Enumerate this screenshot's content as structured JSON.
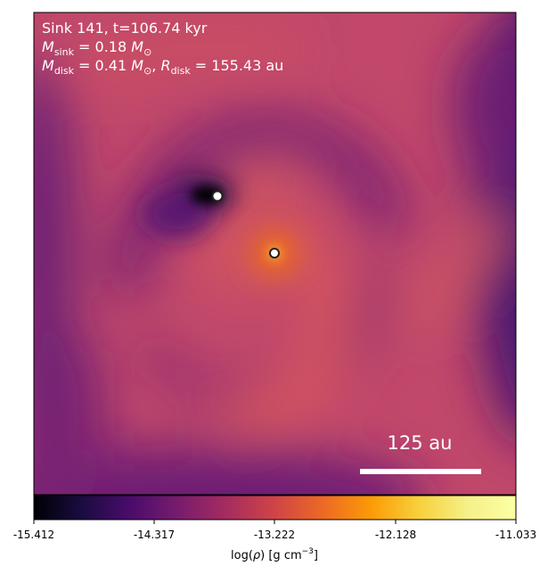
{
  "annotation": {
    "line1": "Sink 141, t=106.74 kyr",
    "line2_symbol": "M",
    "line2_sub": "sink",
    "line2_value": " = 0.18 ",
    "line2_unit": "M",
    "line2_unit_sub": "⊙",
    "line3_symbol": "M",
    "line3_sub": "disk",
    "line3_value": " = 0.41 ",
    "line3_unit": "M",
    "line3_unit_sub": "⊙",
    "line3_sep": ", ",
    "line3_r_symbol": "R",
    "line3_r_sub": "disk",
    "line3_r_value": " = 155.43 au"
  },
  "scale_bar": {
    "label": "125 au",
    "length_au": 125
  },
  "colorbar": {
    "colormap": "inferno",
    "min": -15.412,
    "max": -11.033,
    "tick_labels": [
      "-15.412",
      "-14.317",
      "-13.222",
      "-12.128",
      "-11.033"
    ],
    "label_prefix": "log(",
    "label_symbol": "ρ",
    "label_suffix": ") [g cm",
    "label_exp": "−3",
    "label_close": "]"
  },
  "sinks": [
    {
      "id": "sink-secondary"
    },
    {
      "id": "sink-primary"
    }
  ],
  "colors": {
    "field_base": "#c94f62",
    "field_dark": "#4a0e6e",
    "text": "#ffffff"
  }
}
